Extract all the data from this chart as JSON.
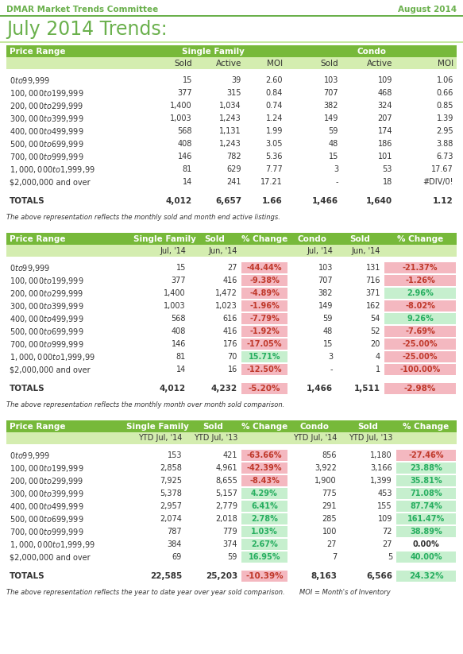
{
  "header_left": "DMAR Market Trends Committee",
  "header_right": "August 2014",
  "title": "July 2014 Trends:",
  "table1": {
    "rows": [
      [
        "$0 to $99,999",
        "15",
        "39",
        "2.60",
        "103",
        "109",
        "1.06"
      ],
      [
        "$100,000 to $199,999",
        "377",
        "315",
        "0.84",
        "707",
        "468",
        "0.66"
      ],
      [
        "$200,000 to $299,999",
        "1,400",
        "1,034",
        "0.74",
        "382",
        "324",
        "0.85"
      ],
      [
        "$300,000 to $399,999",
        "1,003",
        "1,243",
        "1.24",
        "149",
        "207",
        "1.39"
      ],
      [
        "$400,000 to $499,999",
        "568",
        "1,131",
        "1.99",
        "59",
        "174",
        "2.95"
      ],
      [
        "$500,000 to $699,999",
        "408",
        "1,243",
        "3.05",
        "48",
        "186",
        "3.88"
      ],
      [
        "$700,000 to $999,999",
        "146",
        "782",
        "5.36",
        "15",
        "101",
        "6.73"
      ],
      [
        "$1,000,000 to $1,999,99",
        "81",
        "629",
        "7.77",
        "3",
        "53",
        "17.67"
      ],
      [
        "$2,000,000 and over",
        "14",
        "241",
        "17.21",
        "-",
        "18",
        "#DIV/0!"
      ]
    ],
    "totals": [
      "TOTALS",
      "4,012",
      "6,657",
      "1.66",
      "1,466",
      "1,640",
      "1.12"
    ],
    "footnote": "The above representation reflects the monthly sold and month end active listings."
  },
  "table2": {
    "rows": [
      [
        "$0 to $99,999",
        "15",
        "27",
        "-44.44%",
        "103",
        "131",
        "-21.37%"
      ],
      [
        "$100,000 to $199,999",
        "377",
        "416",
        "-9.38%",
        "707",
        "716",
        "-1.26%"
      ],
      [
        "$200,000 to $299,999",
        "1,400",
        "1,472",
        "-4.89%",
        "382",
        "371",
        "2.96%"
      ],
      [
        "$300,000 to $399,999",
        "1,003",
        "1,023",
        "-1.96%",
        "149",
        "162",
        "-8.02%"
      ],
      [
        "$400,000 to $499,999",
        "568",
        "616",
        "-7.79%",
        "59",
        "54",
        "9.26%"
      ],
      [
        "$500,000 to $699,999",
        "408",
        "416",
        "-1.92%",
        "48",
        "52",
        "-7.69%"
      ],
      [
        "$700,000 to $999,999",
        "146",
        "176",
        "-17.05%",
        "15",
        "20",
        "-25.00%"
      ],
      [
        "$1,000,000 to $1,999,99",
        "81",
        "70",
        "15.71%",
        "3",
        "4",
        "-25.00%"
      ],
      [
        "$2,000,000 and over",
        "14",
        "16",
        "-12.50%",
        "-",
        "1",
        "-100.00%"
      ]
    ],
    "totals": [
      "TOTALS",
      "4,012",
      "4,232",
      "-5.20%",
      "1,466",
      "1,511",
      "-2.98%"
    ],
    "footnote": "The above representation reflects the monthly month over month sold comparison."
  },
  "table3": {
    "rows": [
      [
        "$0 to $99,999",
        "153",
        "421",
        "-63.66%",
        "856",
        "1,180",
        "-27.46%"
      ],
      [
        "$100,000 to $199,999",
        "2,858",
        "4,961",
        "-42.39%",
        "3,922",
        "3,166",
        "23.88%"
      ],
      [
        "$200,000 to $299,999",
        "7,925",
        "8,655",
        "-8.43%",
        "1,900",
        "1,399",
        "35.81%"
      ],
      [
        "$300,000 to $399,999",
        "5,378",
        "5,157",
        "4.29%",
        "775",
        "453",
        "71.08%"
      ],
      [
        "$400,000 to $499,999",
        "2,957",
        "2,779",
        "6.41%",
        "291",
        "155",
        "87.74%"
      ],
      [
        "$500,000 to $699,999",
        "2,074",
        "2,018",
        "2.78%",
        "285",
        "109",
        "161.47%"
      ],
      [
        "$700,000 to $999,999",
        "787",
        "779",
        "1.03%",
        "100",
        "72",
        "38.89%"
      ],
      [
        "$1,000,000 to $1,999,99",
        "384",
        "374",
        "2.67%",
        "27",
        "27",
        "0.00%"
      ],
      [
        "$2,000,000 and over",
        "69",
        "59",
        "16.95%",
        "7",
        "5",
        "40.00%"
      ]
    ],
    "totals": [
      "TOTALS",
      "22,585",
      "25,203",
      "-10.39%",
      "8,163",
      "6,566",
      "24.32%"
    ],
    "footnote": "The above representation reflects the year to date year over year sold comparison.       MOI = Month's of Inventory"
  },
  "GREEN": "#77b93a",
  "LIGHT_GREEN": "#d4edb0",
  "WHITE": "#ffffff",
  "PINK": "#f4b8c0",
  "CELL_GREEN": "#c6efce",
  "RED_TEXT": "#c0392b",
  "GREEN_TEXT": "#27ae60",
  "DARK": "#333333",
  "HEADER_GREEN": "#6ab04c"
}
